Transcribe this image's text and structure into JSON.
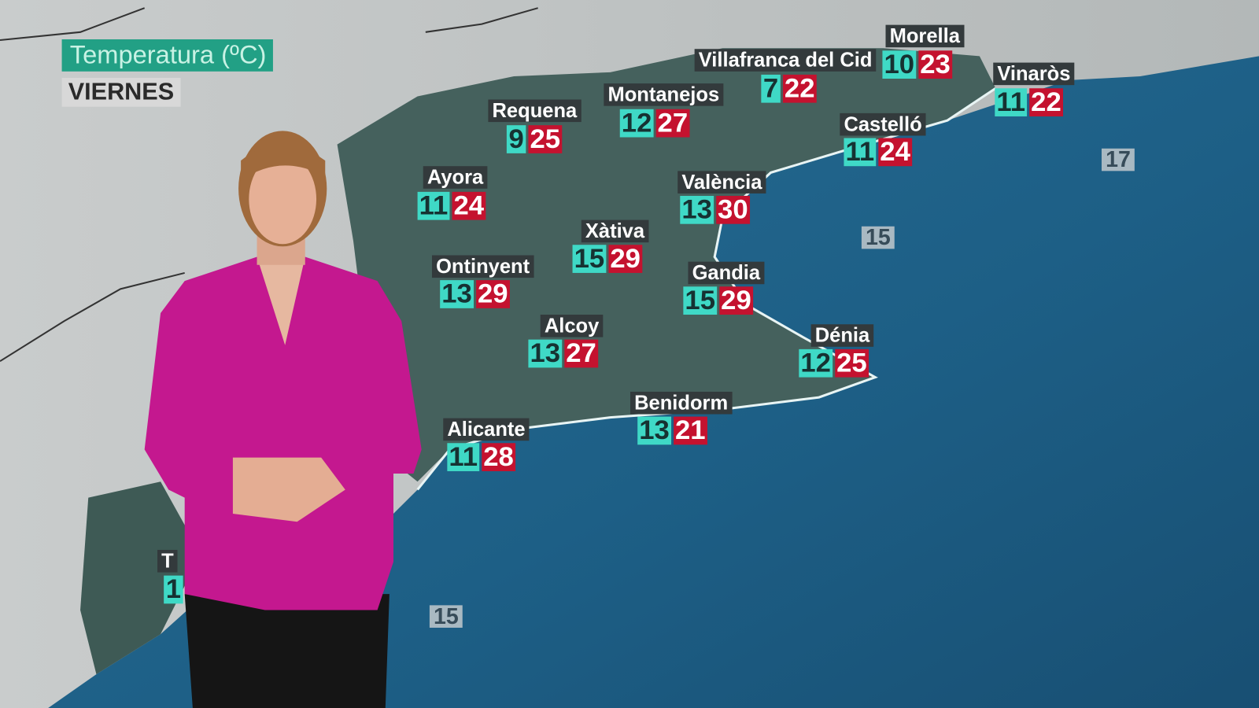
{
  "header": {
    "title": "Temperatura (ºC)",
    "day": "VIERNES"
  },
  "colors": {
    "min_box": "#3fd9c6",
    "max_box": "#c4122f",
    "label_box": "#333a3c",
    "title_box": "#22a085",
    "sea": "#1f5f86",
    "land": "#3f5f5a"
  },
  "cities": [
    {
      "name": "Requena",
      "min": "9",
      "max": "25"
    },
    {
      "name": "Montanejos",
      "min": "12",
      "max": "27"
    },
    {
      "name": "Villafranca del Cid",
      "min": "7",
      "max": "22"
    },
    {
      "name": "Morella",
      "min": "10",
      "max": "23"
    },
    {
      "name": "Vinaròs",
      "min": "11",
      "max": "22"
    },
    {
      "name": "Castelló",
      "min": "11",
      "max": "24"
    },
    {
      "name": "València",
      "min": "13",
      "max": "30"
    },
    {
      "name": "Ayora",
      "min": "11",
      "max": "24"
    },
    {
      "name": "Xàtiva",
      "min": "15",
      "max": "29"
    },
    {
      "name": "Ontinyent",
      "min": "13",
      "max": "29"
    },
    {
      "name": "Gandia",
      "min": "15",
      "max": "29"
    },
    {
      "name": "Alcoy",
      "min": "13",
      "max": "27"
    },
    {
      "name": "Dénia",
      "min": "12",
      "max": "25"
    },
    {
      "name": "Benidorm",
      "min": "13",
      "max": "21"
    },
    {
      "name": "Alicante",
      "min": "11",
      "max": "28"
    }
  ],
  "partial_city": {
    "name": "T",
    "min": "1"
  },
  "sea_temps": [
    "17",
    "15",
    "15"
  ]
}
